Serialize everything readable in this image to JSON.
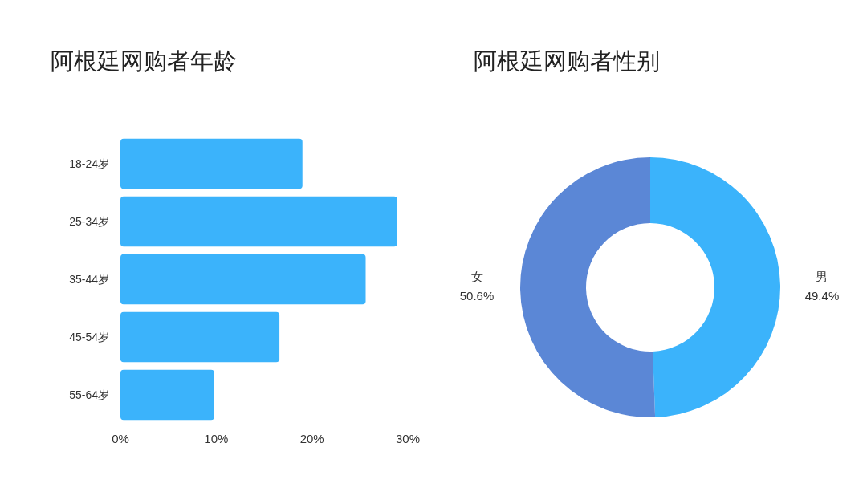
{
  "chart_data": [
    {
      "type": "bar",
      "title": "阿根廷网购者年龄",
      "orientation": "horizontal",
      "categories": [
        "18-24岁",
        "25-34岁",
        "35-44岁",
        "45-54岁",
        "55-64岁"
      ],
      "values": [
        19.0,
        28.9,
        25.6,
        16.6,
        9.8
      ],
      "color": "#3bb3fb",
      "xlim": [
        0,
        30
      ],
      "xticks": [
        {
          "value": 0,
          "label": "0%"
        },
        {
          "value": 10,
          "label": "10%"
        },
        {
          "value": 20,
          "label": "20%"
        },
        {
          "value": 30,
          "label": "30%"
        }
      ],
      "grid": false
    },
    {
      "type": "donut",
      "title": "阿根廷网购者性别",
      "categories": [
        "男",
        "女"
      ],
      "values": [
        49.4,
        50.6
      ],
      "colors": [
        "#3bb3fb",
        "#5b87d6"
      ],
      "value_labels": [
        "49.4%",
        "50.6%"
      ]
    }
  ]
}
